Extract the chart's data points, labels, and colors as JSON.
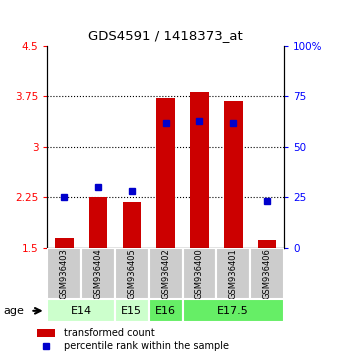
{
  "title": "GDS4591 / 1418373_at",
  "samples": [
    "GSM936403",
    "GSM936404",
    "GSM936405",
    "GSM936402",
    "GSM936400",
    "GSM936401",
    "GSM936406"
  ],
  "transformed_counts": [
    1.65,
    2.25,
    2.18,
    3.72,
    3.82,
    3.68,
    1.62
  ],
  "percentile_ranks": [
    25,
    30,
    28,
    62,
    63,
    62,
    23
  ],
  "ylim_left": [
    1.5,
    4.5
  ],
  "ylim_right": [
    0,
    100
  ],
  "yticks_left": [
    1.5,
    2.25,
    3.0,
    3.75,
    4.5
  ],
  "yticks_right": [
    0,
    25,
    50,
    75,
    100
  ],
  "ytick_labels_left": [
    "1.5",
    "2.25",
    "3",
    "3.75",
    "4.5"
  ],
  "ytick_labels_right": [
    "0",
    "25",
    "50",
    "75",
    "100%"
  ],
  "bar_color": "#cc0000",
  "dot_color": "#0000cc",
  "bar_bottom": 1.5,
  "age_groups": [
    {
      "label": "E14",
      "samples": [
        0,
        1
      ],
      "color": "#ccffcc"
    },
    {
      "label": "E15",
      "samples": [
        2
      ],
      "color": "#ccffcc"
    },
    {
      "label": "E16",
      "samples": [
        3
      ],
      "color": "#66ee66"
    },
    {
      "label": "E17.5",
      "samples": [
        4,
        5,
        6
      ],
      "color": "#66ee66"
    }
  ],
  "legend_bar_color": "#cc0000",
  "legend_dot_color": "#0000cc",
  "legend_bar_label": "transformed count",
  "legend_dot_label": "percentile rank within the sample",
  "sample_box_color": "#cccccc",
  "age_label": "age",
  "grid_yticks": [
    2.25,
    3.0,
    3.75
  ]
}
